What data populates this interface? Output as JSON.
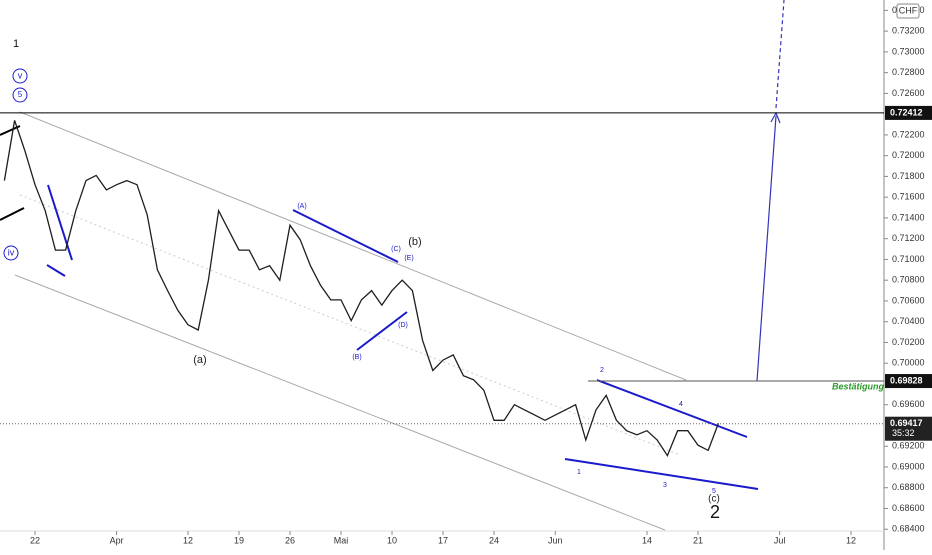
{
  "chart_data": {
    "type": "line",
    "color": "#1e1e1e",
    "x": [
      -3,
      -2,
      -1,
      0,
      1,
      2,
      3,
      4,
      5,
      6,
      7,
      8,
      9,
      10,
      11,
      12,
      13,
      14,
      15,
      16,
      17,
      18,
      19,
      20,
      21,
      22,
      23,
      24,
      25,
      26,
      27,
      28,
      29,
      30,
      31,
      32,
      33,
      34,
      35,
      36,
      37,
      38,
      39,
      40,
      41,
      42,
      43,
      44,
      45,
      46,
      47,
      48,
      49,
      50,
      51,
      52,
      53,
      54,
      55,
      56,
      57,
      58,
      59,
      60,
      61,
      62,
      63,
      64,
      65,
      66,
      67
    ],
    "values": [
      0.7176,
      0.7234,
      0.7205,
      0.7172,
      0.7147,
      0.7109,
      0.7109,
      0.7147,
      0.7176,
      0.7181,
      0.7167,
      0.7172,
      0.7176,
      0.7172,
      0.7143,
      0.709,
      0.707,
      0.7051,
      0.7037,
      0.7032,
      0.708,
      0.7147,
      0.7128,
      0.7109,
      0.7109,
      0.709,
      0.7094,
      0.708,
      0.7133,
      0.7119,
      0.7094,
      0.7075,
      0.7061,
      0.7061,
      0.7041,
      0.7061,
      0.707,
      0.7056,
      0.707,
      0.708,
      0.707,
      0.7022,
      0.6993,
      0.7003,
      0.7008,
      0.6988,
      0.6984,
      0.6974,
      0.6945,
      0.6945,
      0.696,
      0.6955,
      0.695,
      0.6945,
      0.695,
      0.6955,
      0.696,
      0.6926,
      0.6955,
      0.6969,
      0.6945,
      0.6935,
      0.6931,
      0.6935,
      0.6926,
      0.6911,
      0.6935,
      0.6935,
      0.6921,
      0.6916,
      0.6942
    ],
    "xlim": [
      -3.43,
      83.23
    ],
    "ylim": [
      0.682,
      0.735
    ],
    "xticks": [
      {
        "value": 0,
        "label": "22"
      },
      {
        "value": 8,
        "label": "Apr"
      },
      {
        "value": 15,
        "label": "12"
      },
      {
        "value": 20,
        "label": "19"
      },
      {
        "value": 25,
        "label": "26"
      },
      {
        "value": 30,
        "label": "Mai"
      },
      {
        "value": 35,
        "label": "10"
      },
      {
        "value": 40,
        "label": "17"
      },
      {
        "value": 45,
        "label": "24"
      },
      {
        "value": 51,
        "label": "Jun"
      },
      {
        "value": 60,
        "label": "14"
      },
      {
        "value": 65,
        "label": "21"
      },
      {
        "value": 73,
        "label": "Jul"
      },
      {
        "value": 80,
        "label": "12"
      }
    ],
    "yticks": [
      {
        "value": 0.734,
        "label": "0.73400"
      },
      {
        "value": 0.732,
        "label": "0.73200"
      },
      {
        "value": 0.73,
        "label": "0.73000"
      },
      {
        "value": 0.728,
        "label": "0.72800"
      },
      {
        "value": 0.726,
        "label": "0.72600"
      },
      {
        "value": 0.722,
        "label": "0.72200"
      },
      {
        "value": 0.72,
        "label": "0.72000"
      },
      {
        "value": 0.718,
        "label": "0.71800"
      },
      {
        "value": 0.716,
        "label": "0.71600"
      },
      {
        "value": 0.714,
        "label": "0.71400"
      },
      {
        "value": 0.712,
        "label": "0.71200"
      },
      {
        "value": 0.71,
        "label": "0.71000"
      },
      {
        "value": 0.708,
        "label": "0.70800"
      },
      {
        "value": 0.706,
        "label": "0.70600"
      },
      {
        "value": 0.704,
        "label": "0.70400"
      },
      {
        "value": 0.702,
        "label": "0.70200"
      },
      {
        "value": 0.7,
        "label": "0.70000"
      },
      {
        "value": 0.696,
        "label": "0.69600"
      },
      {
        "value": 0.692,
        "label": "0.69200"
      },
      {
        "value": 0.69,
        "label": "0.69000"
      },
      {
        "value": 0.688,
        "label": "0.68800"
      },
      {
        "value": 0.686,
        "label": "0.68600"
      },
      {
        "value": 0.684,
        "label": "0.68400"
      }
    ],
    "levels": [
      0.72412,
      0.69828
    ],
    "last_price": 0.69417,
    "countdown": "35:32",
    "currency": "CHF",
    "annotations": [
      "1",
      "v",
      "5",
      "iv",
      "(a)",
      "(b)",
      "(A)",
      "(B)",
      "(C)",
      "(D)",
      "(E)",
      "1",
      "2",
      "3",
      "4",
      "5",
      "(c)",
      "2",
      "Bestätigung"
    ]
  }
}
